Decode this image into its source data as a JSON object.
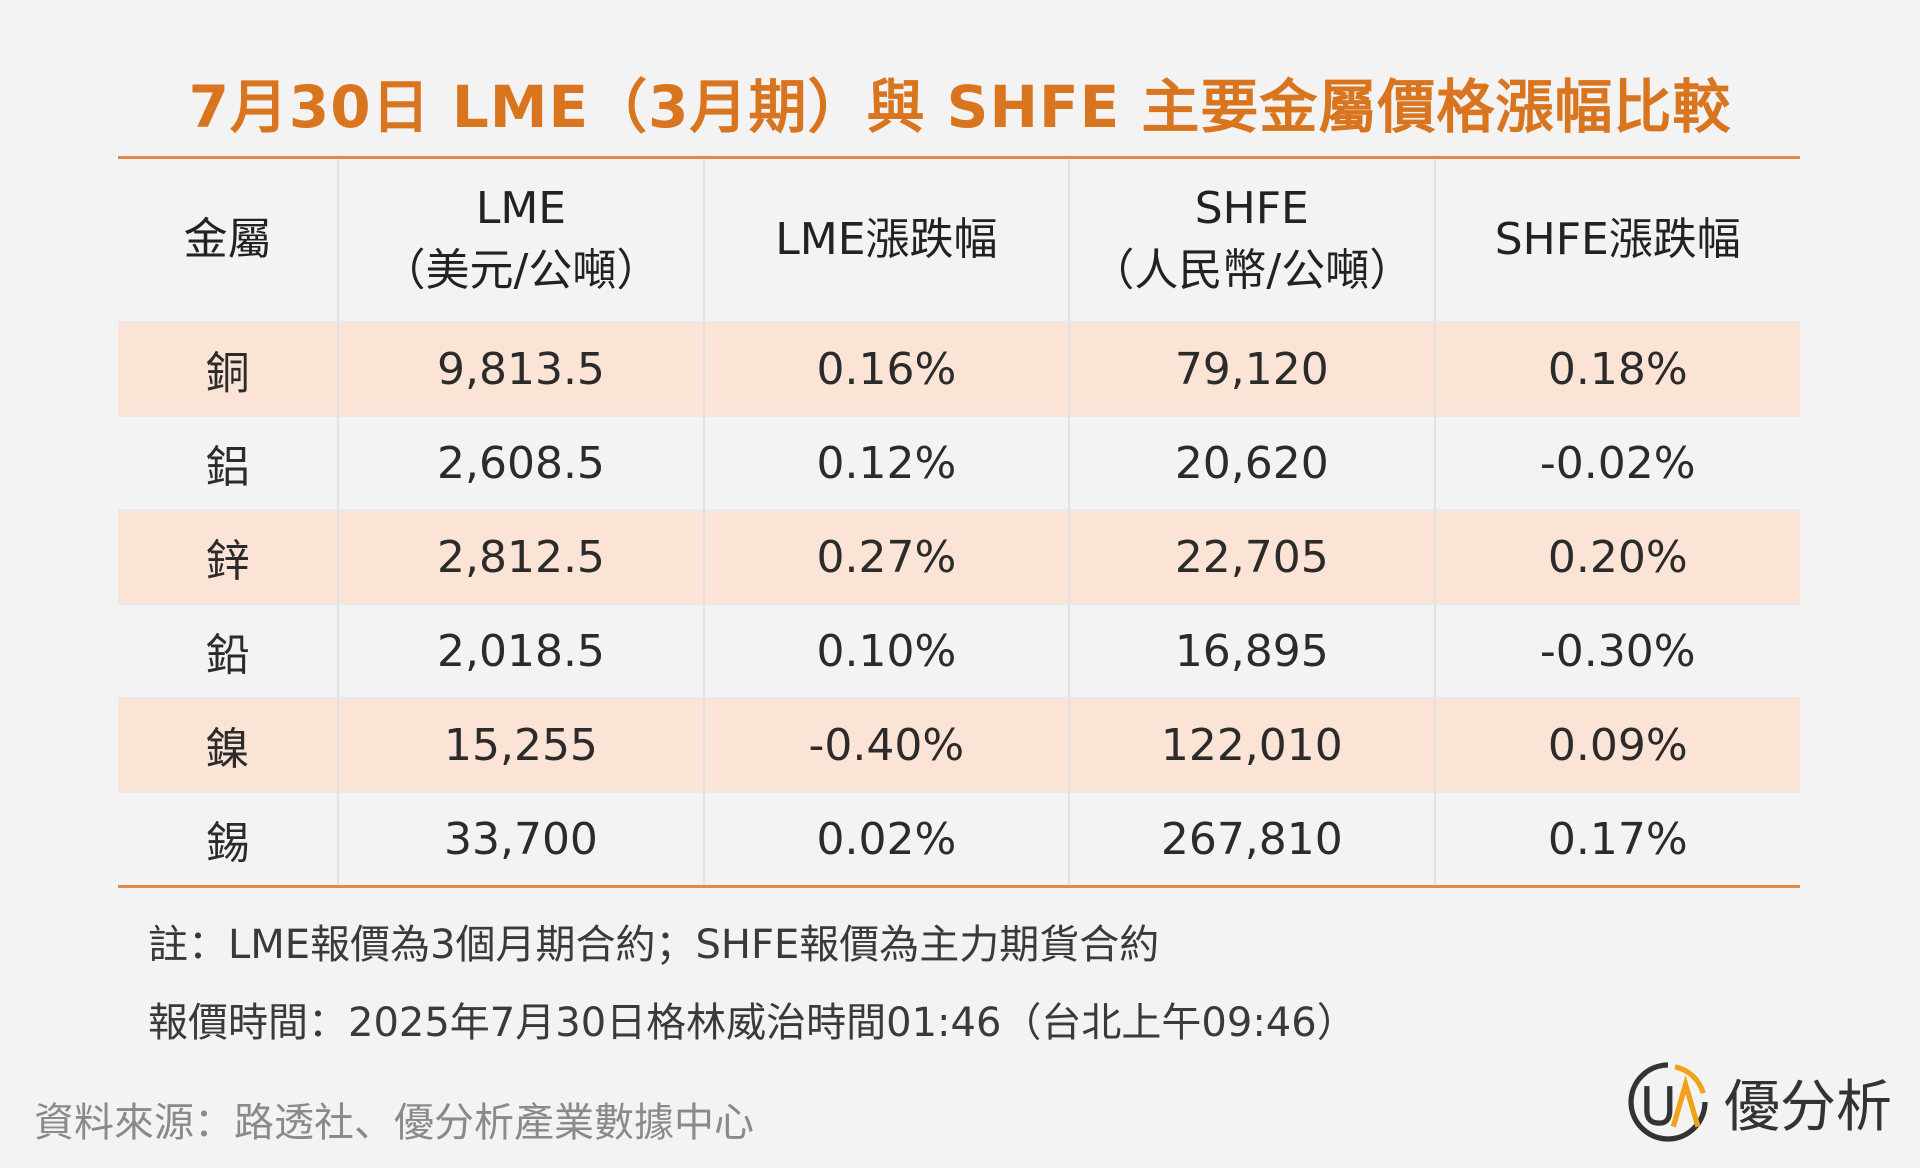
{
  "title": "7月30日 LME（3月期）與 SHFE 主要金屬價格漲幅比較",
  "table": {
    "headers": [
      {
        "main": "金屬",
        "sub": ""
      },
      {
        "main": "LME",
        "sub": "（美元/公噸）"
      },
      {
        "main": "LME漲跌幅",
        "sub": ""
      },
      {
        "main": "SHFE",
        "sub": "（人民幣/公噸）"
      },
      {
        "main": "SHFE漲跌幅",
        "sub": ""
      }
    ],
    "rows": [
      [
        "銅",
        "9,813.5",
        "0.16%",
        "79,120",
        "0.18%"
      ],
      [
        "鋁",
        "2,608.5",
        "0.12%",
        "20,620",
        "-0.02%"
      ],
      [
        "鋅",
        "2,812.5",
        "0.27%",
        "22,705",
        "0.20%"
      ],
      [
        "鉛",
        "2,018.5",
        "0.10%",
        "16,895",
        "-0.30%"
      ],
      [
        "鎳",
        "15,255",
        "-0.40%",
        "122,010",
        "0.09%"
      ],
      [
        "錫",
        "33,700",
        "0.02%",
        "267,810",
        "0.17%"
      ]
    ]
  },
  "notes": {
    "note1": "註：LME報價為3個月期合約；SHFE報價為主力期貨合約",
    "note2": "報價時間：2025年7月30日格林威治時間01:46（台北上午09:46）"
  },
  "source": "資料來源：路透社、優分析產業數據中心",
  "logo": {
    "text": "優分析",
    "icon": "ua-logo-icon"
  },
  "colors": {
    "title": "#d9741f",
    "rule": "#e08a4a",
    "stripe": "#fbe3d6",
    "background": "#f3f3f3"
  }
}
